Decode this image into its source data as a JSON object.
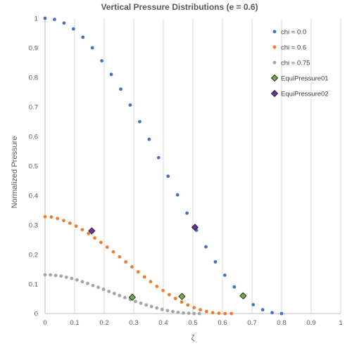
{
  "chart_data": {
    "type": "scatter",
    "title": "Vertical Pressure Distributions (e = 0.6)",
    "xlabel": "ζ",
    "ylabel": "Normalized Pressure",
    "xlim": [
      0,
      1
    ],
    "ylim": [
      0,
      1
    ],
    "xticks": [
      "0",
      "0.1",
      "0.2",
      "0.3",
      "0.4",
      "0.5",
      "0.6",
      "0.7",
      "0.8",
      "0.9",
      "1"
    ],
    "yticks": [
      "0",
      "0.1",
      "0.2",
      "0.3",
      "0.4",
      "0.5",
      "0.6",
      "0.7",
      "0.8",
      "0.9",
      "1"
    ],
    "grid": "vertical",
    "legend_position": "top-right",
    "series": [
      {
        "name": "chi =  0.0",
        "marker": "circle",
        "color": "#4472C4",
        "x": [
          0,
          0.032,
          0.064,
          0.096,
          0.128,
          0.16,
          0.192,
          0.224,
          0.256,
          0.288,
          0.32,
          0.352,
          0.384,
          0.416,
          0.448,
          0.48,
          0.512,
          0.544,
          0.576,
          0.608,
          0.64,
          0.672,
          0.704,
          0.736,
          0.768,
          0.8
        ],
        "y": [
          1.0,
          0.996,
          0.984,
          0.964,
          0.936,
          0.9,
          0.856,
          0.81,
          0.76,
          0.706,
          0.65,
          0.59,
          0.528,
          0.465,
          0.402,
          0.34,
          0.282,
          0.226,
          0.175,
          0.13,
          0.09,
          0.056,
          0.03,
          0.013,
          0.003,
          0.0
        ]
      },
      {
        "name": "chi = 0.6",
        "marker": "circle",
        "color": "#ED7D31",
        "x": [
          0,
          0.021,
          0.042,
          0.063,
          0.084,
          0.105,
          0.126,
          0.147,
          0.168,
          0.189,
          0.21,
          0.231,
          0.252,
          0.273,
          0.294,
          0.315,
          0.336,
          0.357,
          0.378,
          0.399,
          0.42,
          0.441,
          0.462,
          0.483,
          0.504,
          0.525,
          0.546,
          0.567,
          0.588,
          0.609,
          0.63
        ],
        "y": [
          0.328,
          0.327,
          0.322,
          0.315,
          0.306,
          0.296,
          0.284,
          0.271,
          0.256,
          0.241,
          0.225,
          0.209,
          0.192,
          0.175,
          0.158,
          0.141,
          0.124,
          0.108,
          0.092,
          0.078,
          0.064,
          0.051,
          0.039,
          0.029,
          0.02,
          0.013,
          0.007,
          0.003,
          0.001,
          0.0,
          0.0
        ]
      },
      {
        "name": "chi = 0.75",
        "marker": "circle",
        "color": "#A5A5A5",
        "x": [
          0,
          0.018,
          0.036,
          0.054,
          0.072,
          0.09,
          0.108,
          0.126,
          0.144,
          0.162,
          0.18,
          0.198,
          0.216,
          0.234,
          0.252,
          0.27,
          0.288,
          0.306,
          0.324,
          0.342,
          0.36,
          0.378,
          0.396,
          0.414,
          0.432,
          0.45,
          0.468,
          0.486,
          0.504,
          0.522
        ],
        "y": [
          0.131,
          0.131,
          0.129,
          0.127,
          0.123,
          0.119,
          0.114,
          0.108,
          0.102,
          0.095,
          0.089,
          0.082,
          0.075,
          0.068,
          0.061,
          0.054,
          0.048,
          0.041,
          0.035,
          0.029,
          0.024,
          0.019,
          0.014,
          0.01,
          0.007,
          0.004,
          0.002,
          0.001,
          0.0,
          0.0
        ]
      },
      {
        "name": "EquiPressure01",
        "marker": "diamond",
        "color": "#70AD47",
        "x": [
          0.295,
          0.463,
          0.67
        ],
        "y": [
          0.055,
          0.058,
          0.06
        ]
      },
      {
        "name": "EquiPressure02",
        "marker": "diamond",
        "color": "#7030A0",
        "x": [
          0.158,
          0.507
        ],
        "y": [
          0.28,
          0.292
        ]
      }
    ]
  }
}
